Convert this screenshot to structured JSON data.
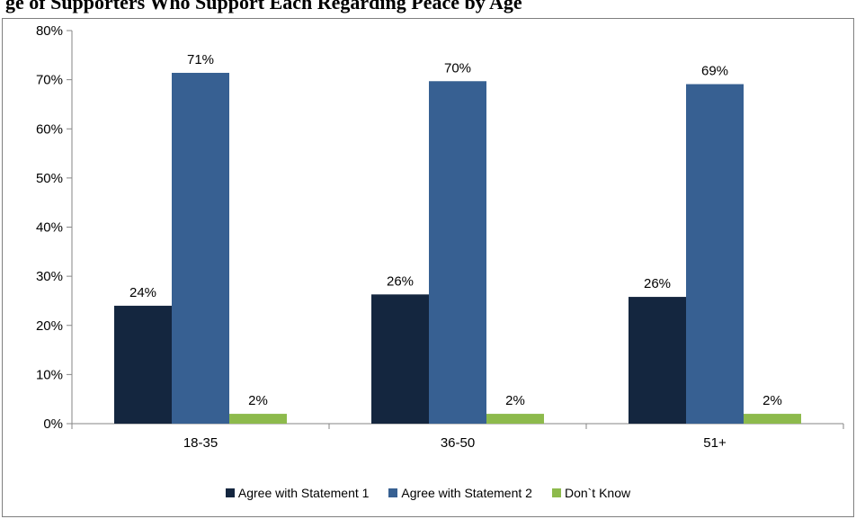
{
  "title": "ge of Supporters Who Support Each Regarding Peace by Age",
  "chart_data": {
    "type": "bar",
    "title": "ge of Supporters Who Support Each Regarding Peace by Age",
    "xlabel": "",
    "ylabel": "",
    "ylim": [
      0,
      80
    ],
    "yticks": [
      0,
      10,
      20,
      30,
      40,
      50,
      60,
      70,
      80
    ],
    "ytick_labels": [
      "0%",
      "10%",
      "20%",
      "30%",
      "40%",
      "50%",
      "60%",
      "70%",
      "80%"
    ],
    "grid": false,
    "legend_position": "bottom",
    "categories": [
      "18-35",
      "36-50",
      "51+"
    ],
    "series": [
      {
        "name": "Agree with Statement 1",
        "color": "#14263f",
        "values": [
          24,
          26.3,
          25.8
        ],
        "labels": [
          "24%",
          "26%",
          "26%"
        ]
      },
      {
        "name": "Agree with Statement 2",
        "color": "#376092",
        "values": [
          71.4,
          69.7,
          69.1
        ],
        "labels": [
          "71%",
          "70%",
          "69%"
        ]
      },
      {
        "name": "Don`t Know",
        "color": "#8dba4c",
        "values": [
          2,
          2,
          2
        ],
        "labels": [
          "2%",
          "2%",
          "2%"
        ]
      }
    ]
  }
}
